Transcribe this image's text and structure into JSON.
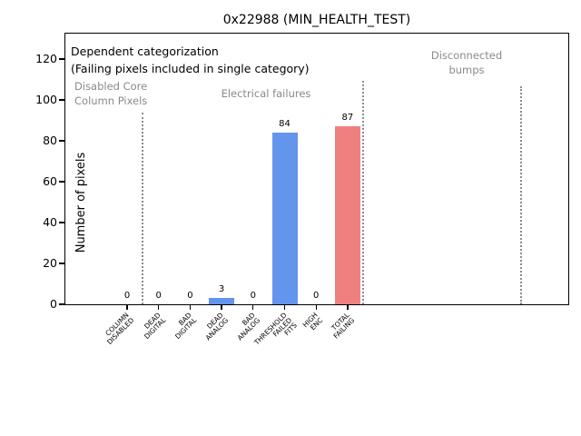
{
  "figure": {
    "title": "0x22988 (MIN_HEALTH_TEST)"
  },
  "annotations": {
    "dependent": "Dependent categorization\n(Failing pixels included in single category)",
    "disabled_core": "Disabled Core\nColumn Pixels",
    "electrical": "Electrical failures",
    "disconnected": "Disconnected\nbumps"
  },
  "colors": {
    "bar_blue": "#6495ED",
    "bar_red": "#F08080",
    "gray_text": "#8a8a8a",
    "separator": "#8c8c8c",
    "axis": "#000000"
  },
  "chart_data": {
    "type": "bar",
    "title": "0x22988 (MIN_HEALTH_TEST)",
    "xlabel": "",
    "ylabel": "Number of pixels",
    "categories": [
      "COLUMN DISABLED",
      "DEAD DIGITAL",
      "BAD DIGITAL",
      "DEAD ANALOG",
      "BAD ANALOG",
      "THRESHOLD FAILED FITS",
      "HIGH ENC",
      "TOTAL FAILING"
    ],
    "category_label_lines": [
      [
        "COLUMN",
        "DISABLED"
      ],
      [
        "DEAD",
        "DIGITAL"
      ],
      [
        "BAD",
        "DIGITAL"
      ],
      [
        "DEAD",
        "ANALOG"
      ],
      [
        "BAD",
        "ANALOG"
      ],
      [
        "THRESHOLD",
        "FAILED",
        "FITS"
      ],
      [
        "HIGH",
        "ENC"
      ],
      [
        "TOTAL",
        "FAILING"
      ]
    ],
    "values": [
      0,
      0,
      0,
      3,
      0,
      84,
      0,
      87
    ],
    "value_labels": [
      "0",
      "0",
      "0",
      "3",
      "0",
      "84",
      "0",
      "87"
    ],
    "bar_colors": [
      "#6495ED",
      "#6495ED",
      "#6495ED",
      "#6495ED",
      "#6495ED",
      "#6495ED",
      "#6495ED",
      "#F08080"
    ],
    "yticks": [
      0,
      20,
      40,
      60,
      80,
      100,
      120
    ],
    "ylim": [
      0,
      132
    ],
    "xlim": [
      -2,
      14
    ],
    "grid": false,
    "legend": null,
    "separator_x": [
      0.5,
      7.5,
      12.5
    ],
    "group_labels": [
      "Disabled Core\nColumn Pixels",
      "Electrical failures",
      "Disconnected\nbumps"
    ],
    "annotation": "Dependent categorization\n(Failing pixels included in single category)"
  }
}
